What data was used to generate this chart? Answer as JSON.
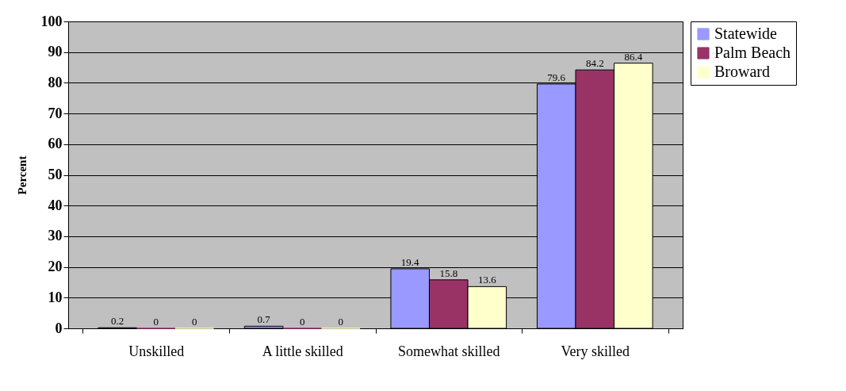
{
  "chart_data": {
    "type": "bar",
    "ylabel": "Percent",
    "categories": [
      "Unskilled",
      "A little skilled",
      "Somewhat skilled",
      "Very skilled"
    ],
    "series": [
      {
        "name": "Statewide",
        "color": "#9999ff",
        "values": [
          0.2,
          0.7,
          19.4,
          79.6
        ]
      },
      {
        "name": "Palm Beach",
        "color": "#993366",
        "values": [
          0,
          0,
          15.8,
          84.2
        ]
      },
      {
        "name": "Broward",
        "color": "#ffffcc",
        "values": [
          0,
          0,
          13.6,
          86.4
        ]
      }
    ],
    "ylim": [
      0,
      100
    ],
    "yticks": [
      0,
      10,
      20,
      30,
      40,
      50,
      60,
      70,
      80,
      90,
      100
    ],
    "grid": "y",
    "legend": "right",
    "data_labels": true
  }
}
